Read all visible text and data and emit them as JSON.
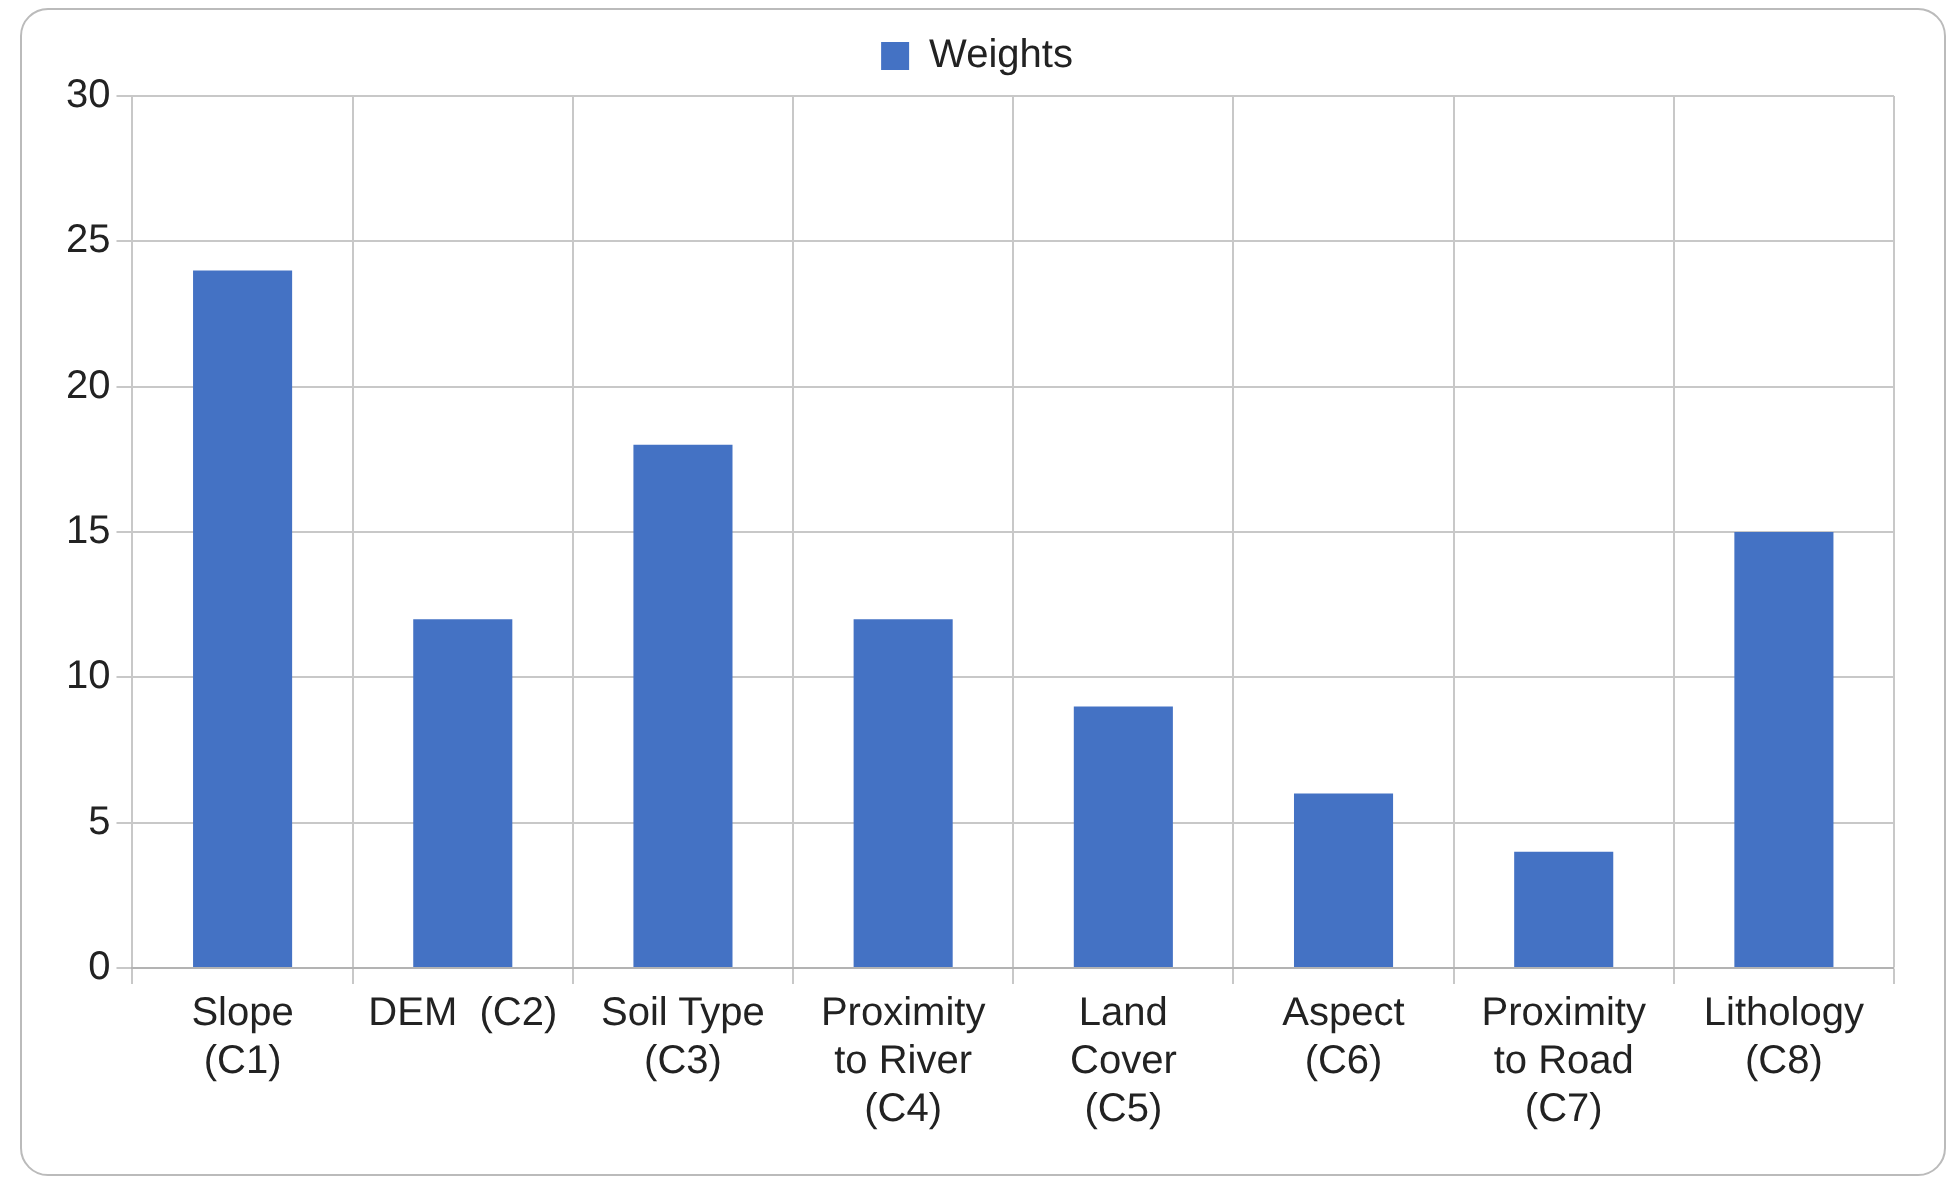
{
  "chart_data": {
    "type": "bar",
    "categories": [
      "Slope (C1)",
      "DEM  (C2)",
      "Soil Type (C3)",
      "Proximity to River (C4)",
      "Land Cover (C5)",
      "Aspect (C6)",
      "Proximity to Road (C7)",
      "Lithology (C8)"
    ],
    "series": [
      {
        "name": "Weights",
        "color": "#4472c4",
        "values": [
          24,
          12,
          18,
          12,
          9,
          6,
          4,
          15
        ]
      }
    ],
    "ylim": [
      0,
      30
    ],
    "yticks": [
      0,
      5,
      10,
      15,
      20,
      25,
      30
    ],
    "grid": true,
    "legend": "top"
  }
}
